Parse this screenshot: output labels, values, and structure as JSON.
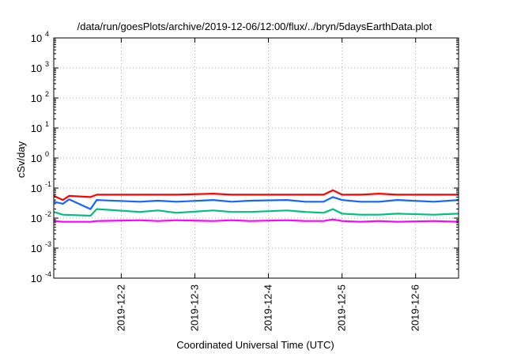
{
  "chart_data": {
    "type": "line",
    "title": "/data/run/goesPlots/archive/2019-12-06/12:00/flux/../bryn/5daysEarthData.plot",
    "xlabel": "Coordinated Universal Time (UTC)",
    "ylabel": "cSv/day",
    "yscale": "log",
    "ylim": [
      0.0001,
      10000
    ],
    "xlim": [
      "2019-12-01 02:00",
      "2019-12-06 14:00"
    ],
    "grid": true,
    "legend": "none",
    "y_ticks": [
      {
        "value": 0.0001,
        "base": "10",
        "exp": "-4"
      },
      {
        "value": 0.001,
        "base": "10",
        "exp": "-3"
      },
      {
        "value": 0.01,
        "base": "10",
        "exp": "-2"
      },
      {
        "value": 0.1,
        "base": "10",
        "exp": "-1"
      },
      {
        "value": 1,
        "base": "10",
        "exp": "0"
      },
      {
        "value": 10,
        "base": "10",
        "exp": "1"
      },
      {
        "value": 100,
        "base": "10",
        "exp": "2"
      },
      {
        "value": 1000,
        "base": "10",
        "exp": "3"
      },
      {
        "value": 10000,
        "base": "10",
        "exp": "4"
      }
    ],
    "x_ticks": [
      {
        "value": "2019-12-02 00:00",
        "label": "2019-12-2"
      },
      {
        "value": "2019-12-03 00:00",
        "label": "2019-12-3"
      },
      {
        "value": "2019-12-04 00:00",
        "label": "2019-12-4"
      },
      {
        "value": "2019-12-05 00:00",
        "label": "2019-12-5"
      },
      {
        "value": "2019-12-06 00:00",
        "label": "2019-12-6"
      }
    ],
    "series": [
      {
        "color": "#ff0000",
        "x": [
          "2019-12-01 02:00",
          "2019-12-01 05:00",
          "2019-12-01 07:00",
          "2019-12-01 14:00",
          "2019-12-01 16:00",
          "2019-12-02 06:00",
          "2019-12-02 12:00",
          "2019-12-02 18:00",
          "2019-12-03 06:00",
          "2019-12-03 12:00",
          "2019-12-03 18:00",
          "2019-12-04 06:00",
          "2019-12-04 12:00",
          "2019-12-04 18:00",
          "2019-12-04 21:00",
          "2019-12-05 00:00",
          "2019-12-05 06:00",
          "2019-12-05 12:00",
          "2019-12-05 18:00",
          "2019-12-06 06:00",
          "2019-12-06 14:00"
        ],
        "y": [
          0.055,
          0.04,
          0.055,
          0.05,
          0.06,
          0.06,
          0.06,
          0.06,
          0.065,
          0.06,
          0.06,
          0.06,
          0.06,
          0.06,
          0.085,
          0.06,
          0.06,
          0.065,
          0.06,
          0.06,
          0.06
        ]
      },
      {
        "color": "#1565ff",
        "x": [
          "2019-12-01 02:00",
          "2019-12-01 05:00",
          "2019-12-01 07:00",
          "2019-12-01 14:00",
          "2019-12-01 16:00",
          "2019-12-02 06:00",
          "2019-12-02 12:00",
          "2019-12-02 18:00",
          "2019-12-03 06:00",
          "2019-12-03 12:00",
          "2019-12-03 18:00",
          "2019-12-04 06:00",
          "2019-12-04 12:00",
          "2019-12-04 18:00",
          "2019-12-04 21:00",
          "2019-12-05 00:00",
          "2019-12-05 06:00",
          "2019-12-05 12:00",
          "2019-12-05 18:00",
          "2019-12-06 06:00",
          "2019-12-06 14:00"
        ],
        "y": [
          0.035,
          0.03,
          0.042,
          0.02,
          0.04,
          0.035,
          0.038,
          0.035,
          0.04,
          0.035,
          0.038,
          0.04,
          0.035,
          0.035,
          0.05,
          0.04,
          0.035,
          0.035,
          0.04,
          0.035,
          0.04
        ]
      },
      {
        "color": "#00c080",
        "x": [
          "2019-12-01 02:00",
          "2019-12-01 05:00",
          "2019-12-01 14:00",
          "2019-12-01 16:00",
          "2019-12-02 06:00",
          "2019-12-02 12:00",
          "2019-12-02 18:00",
          "2019-12-03 06:00",
          "2019-12-03 12:00",
          "2019-12-03 18:00",
          "2019-12-04 06:00",
          "2019-12-04 12:00",
          "2019-12-04 18:00",
          "2019-12-04 21:00",
          "2019-12-05 00:00",
          "2019-12-05 06:00",
          "2019-12-05 12:00",
          "2019-12-05 18:00",
          "2019-12-06 06:00",
          "2019-12-06 14:00"
        ],
        "y": [
          0.016,
          0.013,
          0.012,
          0.02,
          0.016,
          0.018,
          0.015,
          0.018,
          0.016,
          0.016,
          0.018,
          0.016,
          0.015,
          0.02,
          0.014,
          0.013,
          0.013,
          0.014,
          0.013,
          0.014
        ]
      },
      {
        "color": "#ff00ff",
        "x": [
          "2019-12-01 02:00",
          "2019-12-01 05:00",
          "2019-12-01 14:00",
          "2019-12-01 16:00",
          "2019-12-02 06:00",
          "2019-12-02 12:00",
          "2019-12-02 18:00",
          "2019-12-03 06:00",
          "2019-12-03 12:00",
          "2019-12-03 18:00",
          "2019-12-04 06:00",
          "2019-12-04 12:00",
          "2019-12-04 18:00",
          "2019-12-04 21:00",
          "2019-12-05 00:00",
          "2019-12-05 06:00",
          "2019-12-05 12:00",
          "2019-12-05 18:00",
          "2019-12-06 06:00",
          "2019-12-06 14:00"
        ],
        "y": [
          0.008,
          0.0075,
          0.0075,
          0.008,
          0.0085,
          0.008,
          0.0085,
          0.008,
          0.0085,
          0.008,
          0.0085,
          0.008,
          0.008,
          0.009,
          0.008,
          0.0075,
          0.008,
          0.0075,
          0.008,
          0.0075
        ]
      }
    ]
  }
}
